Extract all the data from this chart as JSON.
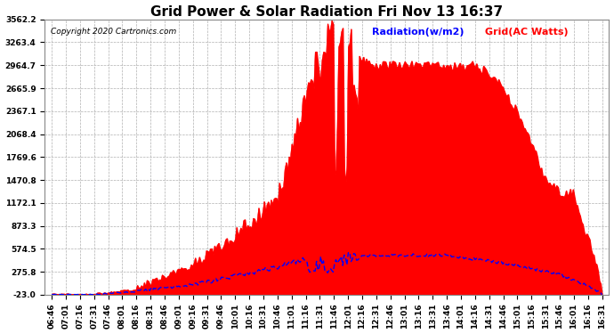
{
  "title": "Grid Power & Solar Radiation Fri Nov 13 16:37",
  "copyright": "Copyright 2020 Cartronics.com",
  "legend_radiation": "Radiation(w/m2)",
  "legend_grid": "Grid(AC Watts)",
  "background_color": "#ffffff",
  "plot_bg_color": "#ffffff",
  "grid_color": "#b0b0b0",
  "yticks": [
    -23.0,
    275.8,
    574.5,
    873.3,
    1172.1,
    1470.8,
    1769.6,
    2068.4,
    2367.1,
    2665.9,
    2964.7,
    3263.4,
    3562.2
  ],
  "ymin": -23.0,
  "ymax": 3562.2,
  "title_fontsize": 11,
  "axis_fontsize": 6.5,
  "label_fontsize": 8,
  "xtick_labels": [
    "06:46",
    "07:01",
    "07:16",
    "07:31",
    "07:46",
    "08:01",
    "08:16",
    "08:31",
    "08:46",
    "09:01",
    "09:16",
    "09:31",
    "09:46",
    "10:01",
    "10:16",
    "10:31",
    "10:46",
    "11:01",
    "11:16",
    "11:31",
    "11:46",
    "12:01",
    "12:16",
    "12:31",
    "12:46",
    "13:01",
    "13:16",
    "13:31",
    "13:46",
    "14:01",
    "14:16",
    "14:31",
    "14:46",
    "15:01",
    "15:16",
    "15:31",
    "15:46",
    "16:01",
    "16:16",
    "16:31"
  ]
}
